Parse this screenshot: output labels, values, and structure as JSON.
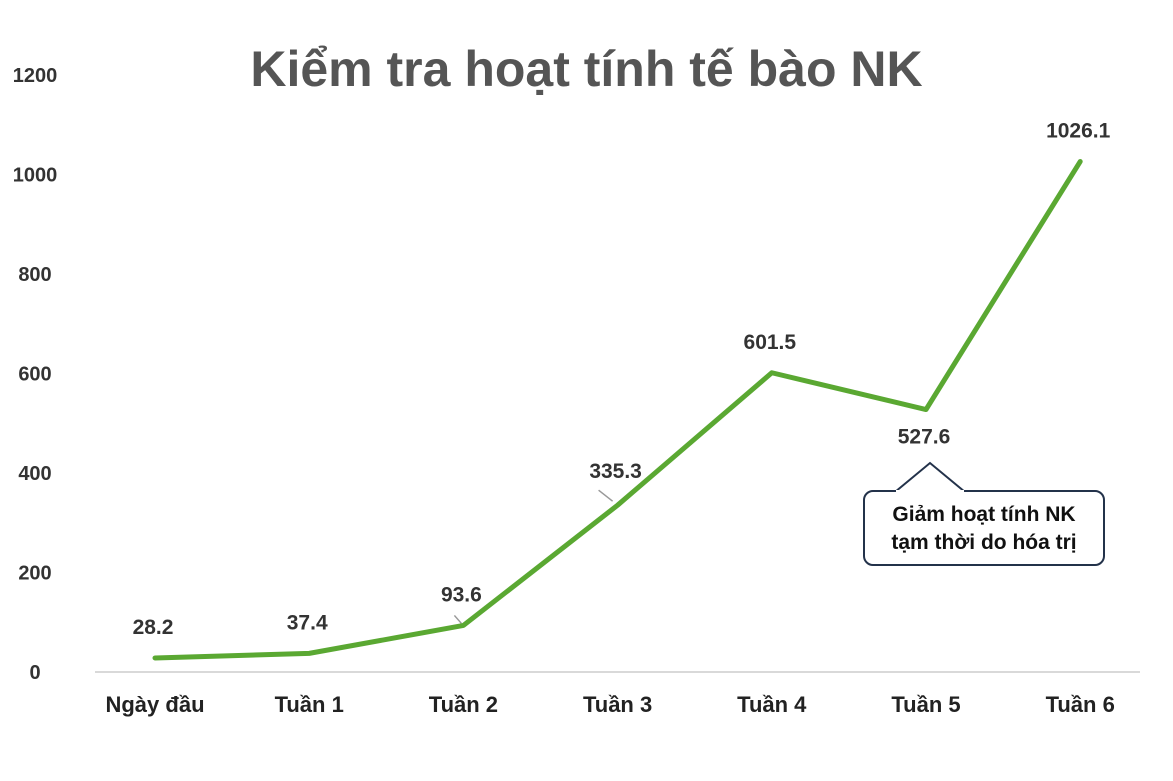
{
  "chart_data": {
    "type": "line",
    "title": "Kiểm tra hoạt tính tế bào NK",
    "categories": [
      "Ngày đầu",
      "Tuần 1",
      "Tuần 2",
      "Tuần 3",
      "Tuần 4",
      "Tuần 5",
      "Tuần 6"
    ],
    "series": [
      {
        "values": [
          28.2,
          37.4,
          93.6,
          335.3,
          601.5,
          527.6,
          1026.1
        ],
        "color": "#5aa832"
      }
    ],
    "data_labels": [
      "28.2",
      "37.4",
      "93.6",
      "335.3",
      "601.5",
      "527.6",
      "1026.1"
    ],
    "yticks": [
      0,
      200,
      400,
      600,
      800,
      1000,
      1200
    ],
    "ylim": [
      0,
      1200
    ],
    "grid": false,
    "xlabel": "",
    "ylabel": "",
    "annotation": {
      "text_line1": "Giảm hoạt tính NK",
      "text_line2": "tạm thời do hóa trị",
      "target": "Tuần 5"
    }
  }
}
